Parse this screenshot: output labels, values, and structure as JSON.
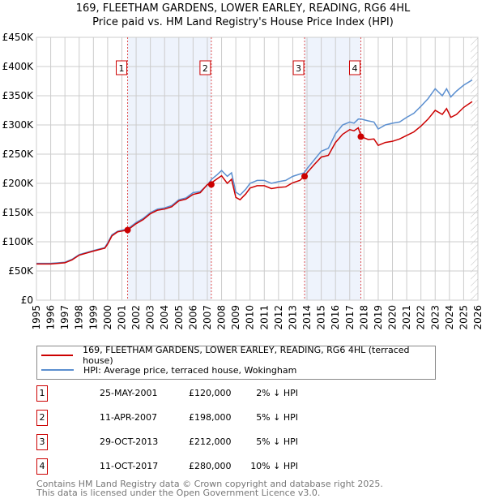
{
  "chart_data": {
    "type": "line",
    "title": "169, FLEETHAM GARDENS, LOWER EARLEY, READING, RG6 4HL",
    "subtitle": "Price paid vs. HM Land Registry's House Price Index (HPI)",
    "xlim": [
      1995,
      2026
    ],
    "ylim": [
      0,
      450000
    ],
    "y_ticks": [
      "£0",
      "£50K",
      "£100K",
      "£150K",
      "£200K",
      "£250K",
      "£300K",
      "£350K",
      "£400K",
      "£450K"
    ],
    "x_ticks": [
      "1995",
      "1996",
      "1997",
      "1998",
      "1999",
      "2000",
      "2001",
      "2002",
      "2003",
      "2004",
      "2005",
      "2006",
      "2007",
      "2008",
      "2009",
      "2010",
      "2011",
      "2012",
      "2013",
      "2014",
      "2015",
      "2016",
      "2017",
      "2018",
      "2019",
      "2020",
      "2021",
      "2022",
      "2023",
      "2024",
      "2025",
      "2026"
    ],
    "grid": true,
    "series": [
      {
        "name": "169, FLEETHAM GARDENS, LOWER EARLEY, READING, RG6 4HL (terraced house)",
        "color": "#cc0000",
        "x": [
          1995,
          1996,
          1997,
          1997.5,
          1998,
          1999,
          1999.8,
          2000,
          2000.3,
          2000.7,
          2001.4,
          2002,
          2002.5,
          2003,
          2003.5,
          2004,
          2004.5,
          2005,
          2005.5,
          2006,
          2006.5,
          2007,
          2007.3,
          2007.7,
          2008,
          2008.4,
          2008.7,
          2009,
          2009.3,
          2009.7,
          2010,
          2010.5,
          2011,
          2011.5,
          2012,
          2012.5,
          2013,
          2013.5,
          2013.8,
          2014,
          2014.5,
          2015,
          2015.5,
          2016,
          2016.5,
          2017,
          2017.3,
          2017.6,
          2017.8,
          2018.3,
          2018.7,
          2019,
          2019.5,
          2020,
          2020.5,
          2021,
          2021.5,
          2022,
          2022.5,
          2023,
          2023.5,
          2023.8,
          2024.1,
          2024.5,
          2025,
          2025.6
        ],
        "y": [
          62000,
          62000,
          64000,
          69000,
          77000,
          84000,
          89000,
          96000,
          110000,
          117000,
          120000,
          131000,
          138000,
          148000,
          154000,
          156000,
          160000,
          170000,
          173000,
          181000,
          184000,
          198000,
          201000,
          208000,
          213000,
          200000,
          207000,
          176000,
          172000,
          182000,
          192000,
          196000,
          196000,
          191000,
          193000,
          194000,
          201000,
          205000,
          212000,
          218000,
          232000,
          245000,
          248000,
          270000,
          284000,
          292000,
          290000,
          295000,
          280000,
          275000,
          276000,
          265000,
          270000,
          272000,
          276000,
          282000,
          288000,
          298000,
          310000,
          325000,
          318000,
          328000,
          313000,
          318000,
          330000,
          340000
        ]
      },
      {
        "name": "HPI: Average price, terraced house, Wokingham",
        "color": "#5b8fd0",
        "x": [
          1995,
          1996,
          1997,
          1997.5,
          1998,
          1999,
          1999.8,
          2000,
          2000.3,
          2000.7,
          2001.4,
          2002,
          2002.5,
          2003,
          2003.5,
          2004,
          2004.5,
          2005,
          2005.5,
          2006,
          2006.5,
          2007,
          2007.3,
          2007.7,
          2008,
          2008.4,
          2008.7,
          2009,
          2009.3,
          2009.7,
          2010,
          2010.5,
          2011,
          2011.5,
          2012,
          2012.5,
          2013,
          2013.5,
          2013.8,
          2014,
          2014.5,
          2015,
          2015.5,
          2016,
          2016.5,
          2017,
          2017.3,
          2017.6,
          2017.8,
          2018.3,
          2018.7,
          2019,
          2019.5,
          2020,
          2020.5,
          2021,
          2021.5,
          2022,
          2022.5,
          2023,
          2023.5,
          2023.8,
          2024.1,
          2024.5,
          2025,
          2025.6
        ],
        "y": [
          63000,
          63000,
          65000,
          70000,
          78000,
          85000,
          90000,
          98000,
          112000,
          118000,
          122000,
          133000,
          140000,
          150000,
          156000,
          158000,
          162000,
          172000,
          175000,
          184000,
          186000,
          197000,
          207000,
          215000,
          222000,
          212000,
          218000,
          185000,
          180000,
          190000,
          200000,
          205000,
          205000,
          200000,
          203000,
          205000,
          212000,
          216000,
          218000,
          225000,
          240000,
          255000,
          260000,
          285000,
          300000,
          305000,
          303000,
          310000,
          310000,
          307000,
          305000,
          293000,
          300000,
          303000,
          305000,
          313000,
          320000,
          332000,
          345000,
          362000,
          350000,
          362000,
          348000,
          358000,
          368000,
          377000
        ]
      }
    ],
    "transactions": [
      {
        "label": "1",
        "x": 2001.4,
        "date": "25-MAY-2001",
        "price": 120000,
        "price_text": "£120,000",
        "hpi": "2% ↓ HPI"
      },
      {
        "label": "2",
        "x": 2007.28,
        "date": "11-APR-2007",
        "price": 198000,
        "price_text": "£198,000",
        "hpi": "5% ↓ HPI"
      },
      {
        "label": "3",
        "x": 2013.83,
        "date": "29-OCT-2013",
        "price": 212000,
        "price_text": "£212,000",
        "hpi": "5% ↓ HPI"
      },
      {
        "label": "4",
        "x": 2017.78,
        "date": "11-OCT-2017",
        "price": 280000,
        "price_text": "£280,000",
        "hpi": "10% ↓ HPI"
      }
    ],
    "shaded_ranges": [
      [
        2001.4,
        2007.28
      ],
      [
        2013.83,
        2017.78
      ]
    ],
    "hatched_from": 2025.5,
    "legend": "below"
  },
  "footer": [
    "Contains HM Land Registry data © Crown copyright and database right 2025.",
    "This data is licensed under the Open Government Licence v3.0."
  ]
}
